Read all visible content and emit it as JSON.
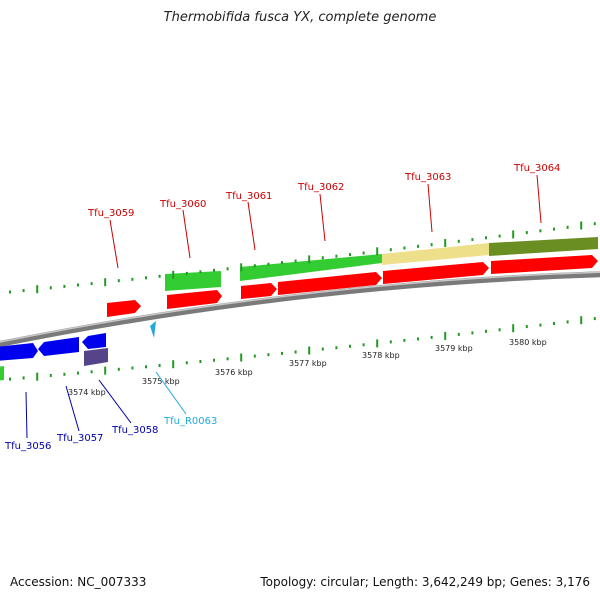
{
  "title": "Thermobifida fusca YX, complete genome",
  "footer": {
    "accession": "Accession: NC_007333",
    "summary": "Topology: circular; Length: 3,642,249 bp; Genes: 3,176"
  },
  "scale_labels": [
    "3574 kbp",
    "3575 kbp",
    "3576 kbp",
    "3577 kbp",
    "3578 kbp",
    "3579 kbp",
    "3580 kbp"
  ],
  "gene_labels_forward": [
    "Tfu_3059",
    "Tfu_3060",
    "Tfu_3061",
    "Tfu_3062",
    "Tfu_3063",
    "Tfu_3064"
  ],
  "gene_labels_reverse": [
    "Tfu_3056",
    "Tfu_3057",
    "Tfu_3058",
    "Tfu_R0063"
  ],
  "colors": {
    "forward_label": "#cc0000",
    "reverse_label": "#0000aa",
    "rna_label": "#22aadd",
    "cds": "#ff0000",
    "cds_reverse": "#0000ee",
    "cog_green": "#33cc33",
    "cog_khaki": "#eee08a",
    "cog_olive": "#6b8e23",
    "cog_purple": "#55448a",
    "backbone": "#888888",
    "tick": "#229922"
  }
}
